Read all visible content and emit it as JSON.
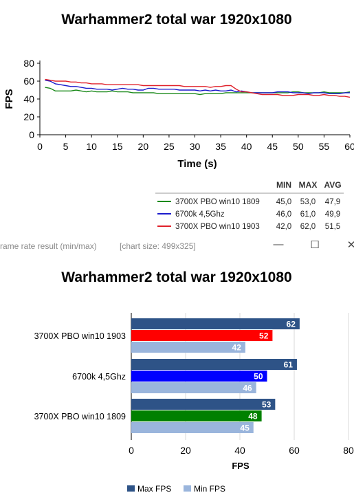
{
  "window": {
    "title": "rame rate result (min/max)",
    "size_label": "[chart size: 499x325]",
    "minimize_icon": "minimize-icon",
    "maximize_icon": "maximize-icon",
    "close_icon": "close-icon",
    "minimize_glyph": "—",
    "maximize_glyph": "☐",
    "close_glyph": "✕"
  },
  "chart_data": [
    {
      "type": "line",
      "title": "Warhammer2 total war 1920x1080",
      "xlabel": "Time (s)",
      "ylabel": "FPS",
      "xlim": [
        0,
        60
      ],
      "ylim": [
        0,
        80
      ],
      "xticks": [
        0,
        5,
        10,
        15,
        20,
        25,
        30,
        35,
        40,
        45,
        50,
        55,
        60
      ],
      "yticks": [
        0,
        20,
        40,
        60,
        80
      ],
      "grid": false,
      "x": [
        1,
        2,
        3,
        4,
        5,
        6,
        7,
        8,
        9,
        10,
        11,
        12,
        13,
        14,
        15,
        16,
        17,
        18,
        19,
        20,
        21,
        22,
        23,
        24,
        25,
        26,
        27,
        28,
        29,
        30,
        31,
        32,
        33,
        34,
        35,
        36,
        37,
        38,
        39,
        40,
        41,
        42,
        43,
        44,
        45,
        46,
        47,
        48,
        49,
        50,
        51,
        52,
        53,
        54,
        55,
        56,
        57,
        58,
        59,
        60
      ],
      "series": [
        {
          "name": "3700X PBO win10 1809",
          "color": "#1a8a1a",
          "values": [
            53,
            52,
            49,
            49,
            49,
            49,
            50,
            49,
            48,
            49,
            48,
            48,
            48,
            49,
            48,
            48,
            48,
            47,
            47,
            47,
            47,
            47,
            46,
            46,
            46,
            46,
            46,
            46,
            46,
            46,
            45,
            46,
            46,
            46,
            46,
            47,
            47,
            47,
            47,
            47,
            47,
            47,
            47,
            47,
            47,
            47,
            47,
            47,
            48,
            48,
            47,
            47,
            47,
            47,
            48,
            47,
            47,
            47,
            47,
            48
          ]
        },
        {
          "name": "6700k 4,5Ghz",
          "color": "#1a1acc",
          "values": [
            61,
            60,
            57,
            56,
            55,
            54,
            54,
            53,
            52,
            52,
            51,
            51,
            51,
            50,
            51,
            52,
            51,
            51,
            50,
            50,
            52,
            52,
            51,
            51,
            51,
            51,
            50,
            50,
            50,
            50,
            49,
            50,
            49,
            50,
            49,
            49,
            50,
            48,
            49,
            48,
            47,
            47,
            47,
            47,
            47,
            48,
            48,
            48,
            47,
            47,
            47,
            46,
            47,
            47,
            47,
            46,
            46,
            46,
            47,
            47
          ]
        },
        {
          "name": "3700X PBO win10 1903",
          "color": "#e0202a",
          "values": [
            62,
            61,
            60,
            60,
            60,
            59,
            59,
            58,
            58,
            57,
            57,
            57,
            56,
            56,
            56,
            56,
            56,
            56,
            56,
            55,
            55,
            55,
            55,
            55,
            55,
            55,
            55,
            54,
            54,
            54,
            54,
            54,
            53,
            54,
            54,
            55,
            55,
            51,
            48,
            48,
            47,
            46,
            45,
            45,
            45,
            45,
            44,
            44,
            44,
            45,
            45,
            45,
            44,
            44,
            45,
            44,
            44,
            43,
            43,
            42
          ]
        }
      ],
      "stats_table": {
        "headers": [
          "MIN",
          "MAX",
          "AVG"
        ],
        "rows": [
          {
            "name": "3700X PBO win10 1809",
            "min": "45,0",
            "max": "53,0",
            "avg": "47,9",
            "color": "#1a8a1a"
          },
          {
            "name": "6700k 4,5Ghz",
            "min": "46,0",
            "max": "61,0",
            "avg": "49,9",
            "color": "#1a1acc"
          },
          {
            "name": "3700X PBO win10 1903",
            "min": "42,0",
            "max": "62,0",
            "avg": "51,5",
            "color": "#e0202a"
          }
        ]
      }
    },
    {
      "type": "bar",
      "orientation": "horizontal",
      "title": "Warhammer2 total war 1920x1080",
      "xlabel": "FPS",
      "xlim": [
        0,
        80
      ],
      "xticks": [
        0,
        20,
        40,
        60,
        80
      ],
      "legend_position": "bottom",
      "categories": [
        "3700X PBO win10 1903",
        "6700k 4,5Ghz",
        "3700X PBO win10 1809"
      ],
      "series": [
        {
          "name": "Max FPS",
          "color": "#2e5387",
          "values": [
            62,
            61,
            53
          ]
        },
        {
          "name": "",
          "colors": [
            "#ff0000",
            "#0000ff",
            "#008000"
          ],
          "values": [
            52,
            50,
            48
          ]
        },
        {
          "name": "Min FPS",
          "color": "#9ab5dc",
          "values": [
            42,
            46,
            45
          ]
        }
      ]
    }
  ]
}
